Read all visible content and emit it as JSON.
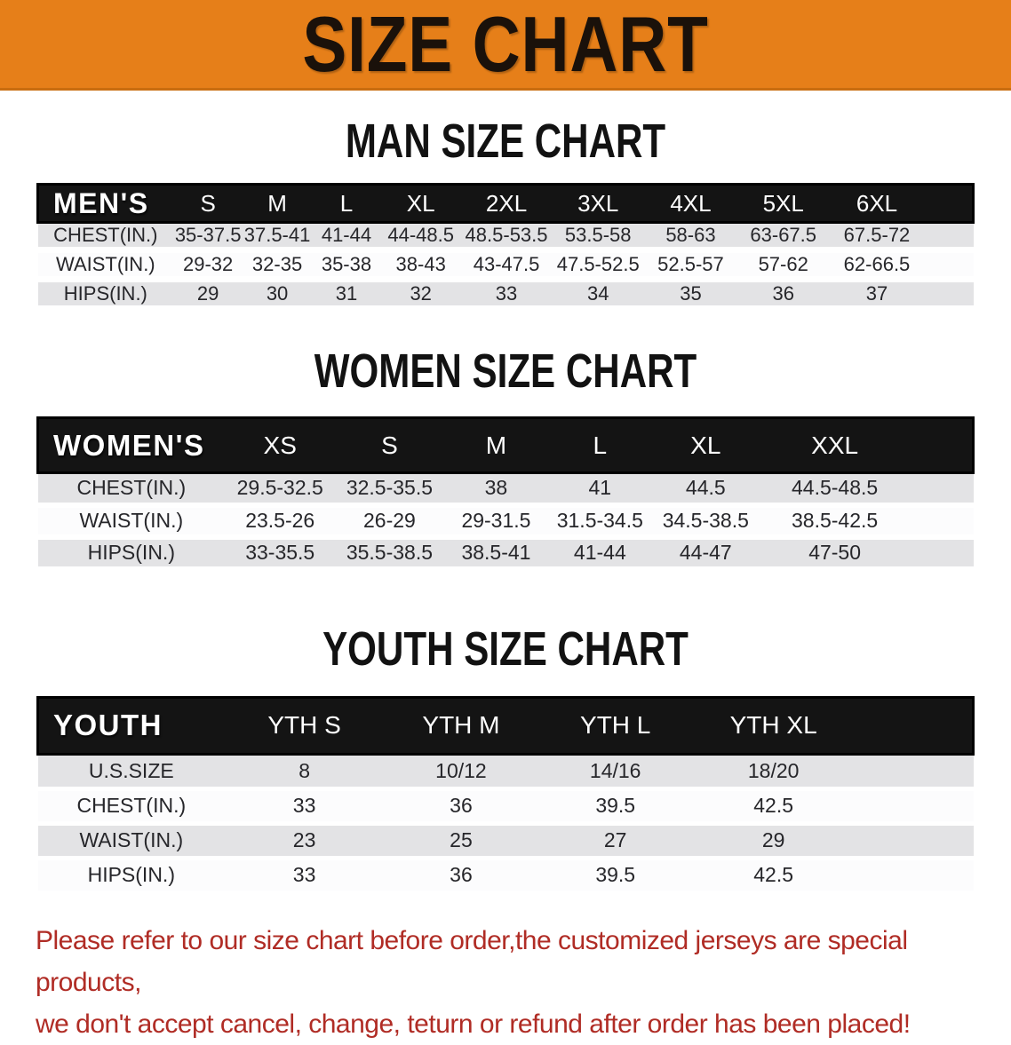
{
  "banner": {
    "title": "SIZE CHART",
    "bg_color": "#e67f19",
    "text_color": "#1a110a"
  },
  "charts": [
    {
      "id": "men",
      "title": "MAN SIZE CHART",
      "header_label": "MEN'S",
      "columns": [
        "S",
        "M",
        "L",
        "XL",
        "2XL",
        "3XL",
        "4XL",
        "5XL",
        "6XL"
      ],
      "rows": [
        {
          "label": "CHEST(IN.)",
          "values": [
            "35-37.5",
            "37.5-41",
            "41-44",
            "44-48.5",
            "48.5-53.5",
            "53.5-58",
            "58-63",
            "63-67.5",
            "67.5-72"
          ]
        },
        {
          "label": "WAIST(IN.)",
          "values": [
            "29-32",
            "32-35",
            "35-38",
            "38-43",
            "43-47.5",
            "47.5-52.5",
            "52.5-57",
            "57-62",
            "62-66.5"
          ]
        },
        {
          "label": "HIPS(IN.)",
          "values": [
            "29",
            "30",
            "31",
            "32",
            "33",
            "34",
            "35",
            "36",
            "37"
          ]
        }
      ]
    },
    {
      "id": "women",
      "title": "WOMEN SIZE CHART",
      "header_label": "WOMEN'S",
      "columns": [
        "XS",
        "S",
        "M",
        "L",
        "XL",
        "XXL"
      ],
      "rows": [
        {
          "label": "CHEST(IN.)",
          "values": [
            "29.5-32.5",
            "32.5-35.5",
            "38",
            "41",
            "44.5",
            "44.5-48.5"
          ]
        },
        {
          "label": "WAIST(IN.)",
          "values": [
            "23.5-26",
            "26-29",
            "29-31.5",
            "31.5-34.5",
            "34.5-38.5",
            "38.5-42.5"
          ]
        },
        {
          "label": "HIPS(IN.)",
          "values": [
            "33-35.5",
            "35.5-38.5",
            "38.5-41",
            "41-44",
            "44-47",
            "47-50"
          ]
        }
      ]
    },
    {
      "id": "youth",
      "title": "YOUTH SIZE CHART",
      "header_label": "YOUTH",
      "columns": [
        "YTH S",
        "YTH M",
        "YTH L",
        "YTH XL"
      ],
      "rows": [
        {
          "label": "U.S.SIZE",
          "values": [
            "8",
            "10/12",
            "14/16",
            "18/20"
          ]
        },
        {
          "label": "CHEST(IN.)",
          "values": [
            "33",
            "36",
            "39.5",
            "42.5"
          ]
        },
        {
          "label": "WAIST(IN.)",
          "values": [
            "23",
            "25",
            "27",
            "29"
          ]
        },
        {
          "label": "HIPS(IN.)",
          "values": [
            "33",
            "36",
            "39.5",
            "42.5"
          ]
        }
      ]
    }
  ],
  "footnote": {
    "line1": "Please refer to our size chart before order,the customized jerseys are special products,",
    "line2": "we don't accept cancel, change, teturn or refund after order has been placed!",
    "color": "#b02c25"
  }
}
